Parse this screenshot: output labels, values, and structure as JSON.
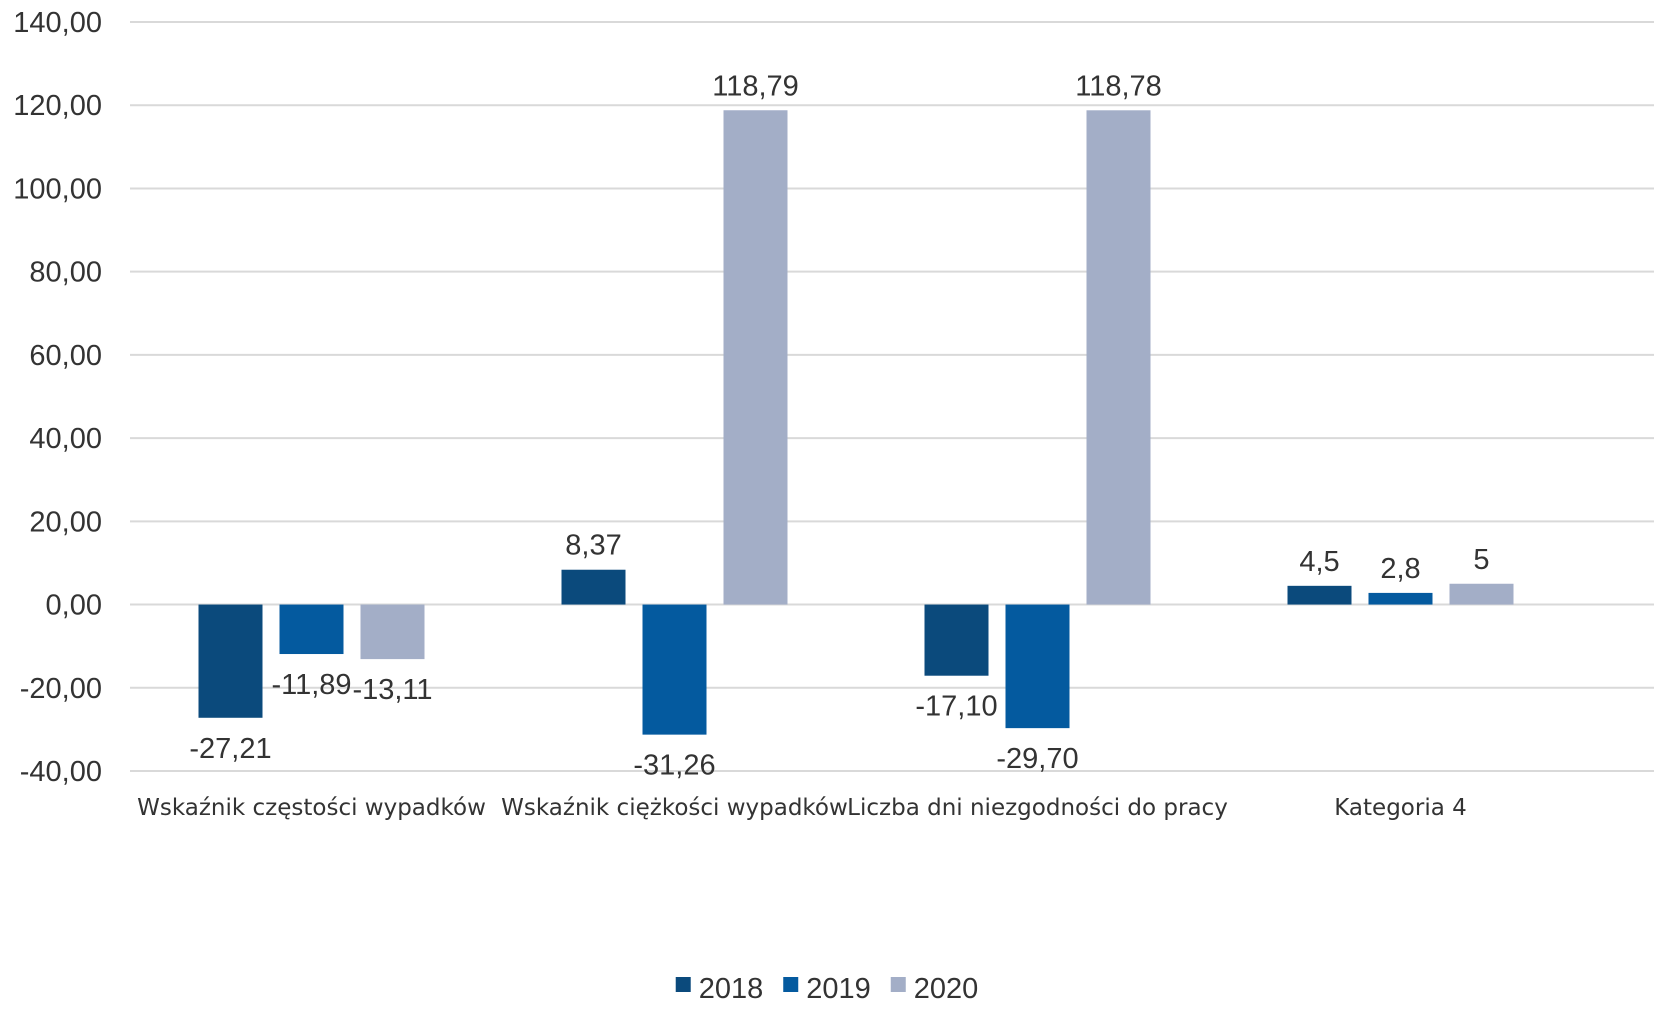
{
  "chart_data": {
    "type": "bar",
    "categories": [
      "Wskaźnik częstości wypadków",
      "Wskaźnik ciężkości wypadków",
      "Liczba dni niezgodności do pracy",
      "Kategoria 4"
    ],
    "series": [
      {
        "name": "2018",
        "color": "#0b4a7c",
        "values": [
          -27.21,
          8.37,
          -17.1,
          4.5
        ],
        "labels": [
          "-27,21",
          "8,37",
          "-17,10",
          "4,5"
        ]
      },
      {
        "name": "2019",
        "color": "#045a9f",
        "values": [
          -11.89,
          -31.26,
          -29.7,
          2.8
        ],
        "labels": [
          "-11,89",
          "-31,26",
          "-29,70",
          "2,8"
        ]
      },
      {
        "name": "2020",
        "color": "#a3aec7",
        "values": [
          -13.11,
          118.79,
          118.78,
          5
        ],
        "labels": [
          "-13,11",
          "118,79",
          "118,78",
          "5"
        ]
      }
    ],
    "y_ticks": [
      {
        "value": 140,
        "label": "140,00"
      },
      {
        "value": 120,
        "label": "120,00"
      },
      {
        "value": 100,
        "label": "100,00"
      },
      {
        "value": 80,
        "label": "80,00"
      },
      {
        "value": 60,
        "label": "60,00"
      },
      {
        "value": 40,
        "label": "40,00"
      },
      {
        "value": 20,
        "label": "20,00"
      },
      {
        "value": 0,
        "label": "0,00"
      },
      {
        "value": -20,
        "label": "-20,00"
      },
      {
        "value": -40,
        "label": "-40,00"
      }
    ],
    "ylim": [
      -40,
      140
    ],
    "grid": true,
    "gridline_color": "#d9d9d9",
    "legend_position": "bottom-center",
    "title": "",
    "xlabel": "",
    "ylabel": ""
  }
}
